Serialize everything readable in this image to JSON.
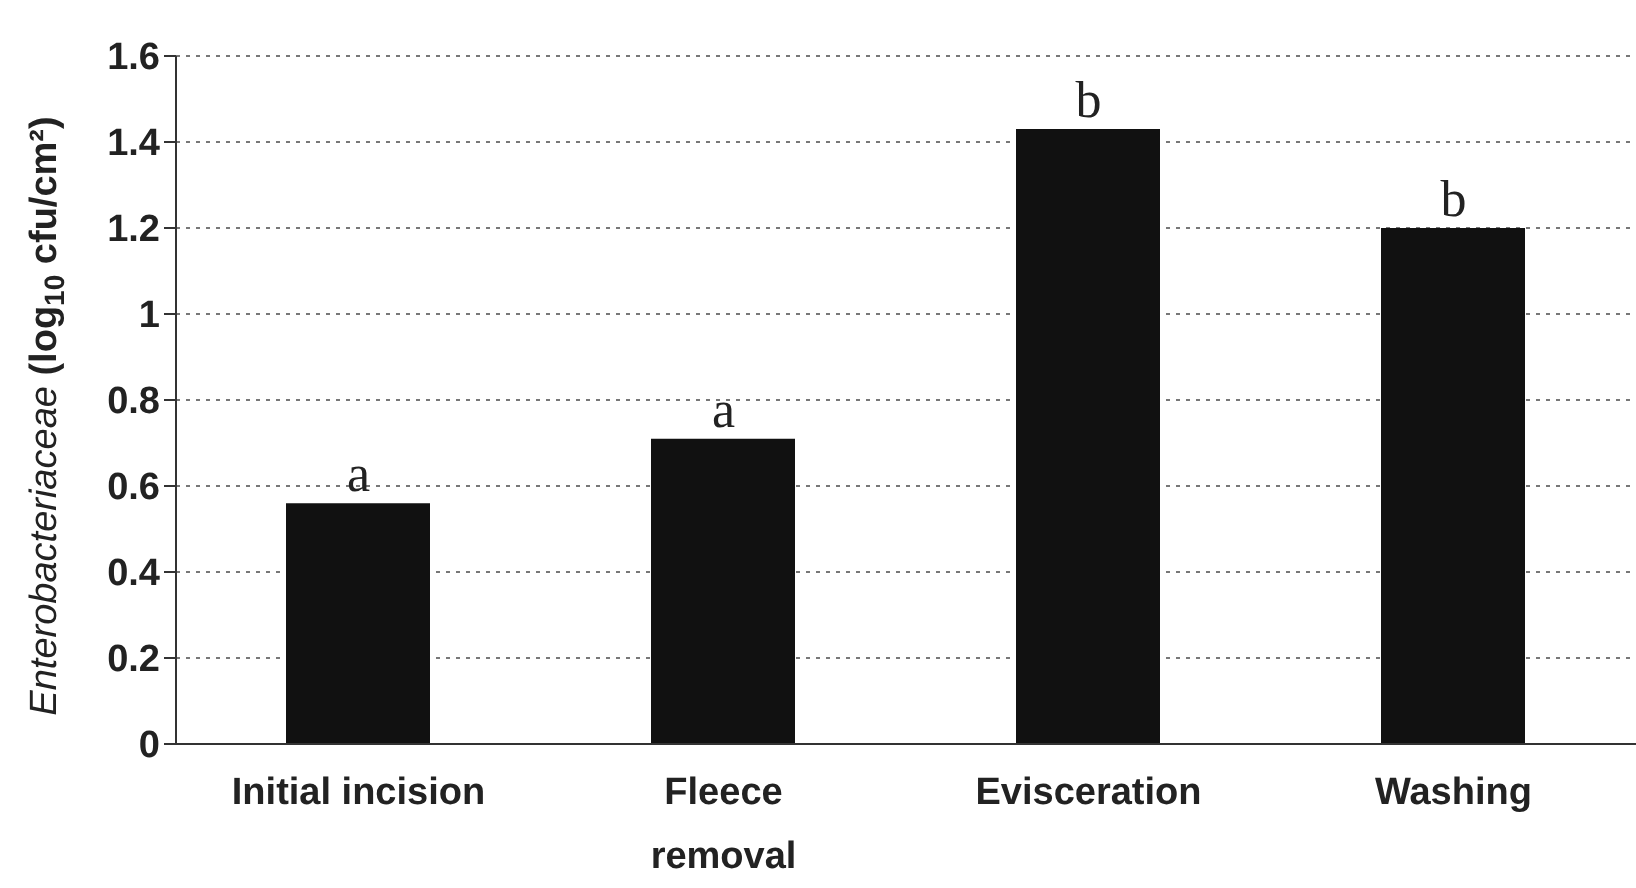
{
  "chart_data": {
    "type": "bar",
    "ylabel": "Enterobacteriaceae (log$_{10}$ cfu/cm²)",
    "categories": [
      "Initial incision",
      "Fleece\nremoval",
      "Evisceration",
      "Washing"
    ],
    "values": [
      0.56,
      0.71,
      1.43,
      1.2
    ],
    "color": "#111111",
    "ylim": [
      0,
      1.6
    ],
    "yticks": [
      0,
      0.2,
      0.4,
      0.6,
      0.8,
      1,
      1.2,
      1.4,
      1.6
    ],
    "grid": "y",
    "annotations": [
      {
        "text": "a",
        "x": "Initial incision",
        "y": 0.56
      },
      {
        "text": "a",
        "x": "Fleece\nremoval",
        "y": 0.71
      },
      {
        "text": "b",
        "x": "Evisceration",
        "y": 1.43
      },
      {
        "text": "b",
        "x": "Washing",
        "y": 1.2
      }
    ]
  }
}
